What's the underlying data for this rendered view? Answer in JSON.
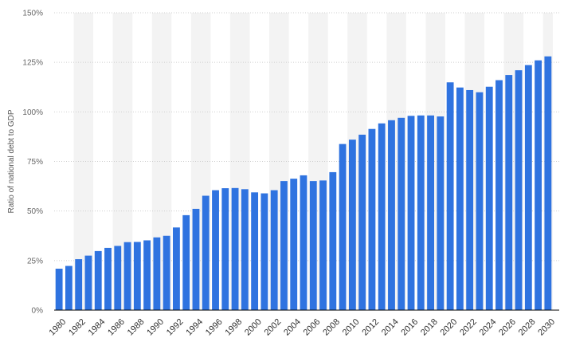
{
  "chart_data": {
    "type": "bar",
    "categories": [
      "1980",
      "1981",
      "1982",
      "1983",
      "1984",
      "1985",
      "1986",
      "1987",
      "1988",
      "1989",
      "1990",
      "1991",
      "1992",
      "1993",
      "1994",
      "1995",
      "1996",
      "1997",
      "1998",
      "1999",
      "2000",
      "2001",
      "2002",
      "2003",
      "2004",
      "2005",
      "2006",
      "2007",
      "2008",
      "2009",
      "2010",
      "2011",
      "2012",
      "2013",
      "2014",
      "2015",
      "2016",
      "2017",
      "2018",
      "2019",
      "2020",
      "2021",
      "2022",
      "2023",
      "2024",
      "2025",
      "2026",
      "2027",
      "2028",
      "2029",
      "2030"
    ],
    "values": [
      20.9,
      22.3,
      25.7,
      27.5,
      29.8,
      31.4,
      32.4,
      34.3,
      34.4,
      35.2,
      36.7,
      37.5,
      41.7,
      47.9,
      51.1,
      57.7,
      60.5,
      61.5,
      61.6,
      61.0,
      59.4,
      58.9,
      60.5,
      65.1,
      66.3,
      68.0,
      65.1,
      65.4,
      69.6,
      83.8,
      86.0,
      88.5,
      91.4,
      94.2,
      95.8,
      97.0,
      98.0,
      98.2,
      98.2,
      97.7,
      114.9,
      112.3,
      111.0,
      109.9,
      112.7,
      116.0,
      118.6,
      121.0,
      123.6,
      126.0,
      128.0
    ],
    "xlabel": "",
    "ylabel": "Ratio of national debt to GDP",
    "ylim": [
      0,
      150
    ],
    "yticks": [
      "0%",
      "25%",
      "50%",
      "75%",
      "100%",
      "125%",
      "150%"
    ],
    "ytick_values": [
      0,
      25,
      50,
      75,
      100,
      125,
      150
    ],
    "xtick_labels": [
      "1980",
      "1982",
      "1984",
      "1986",
      "1988",
      "1990",
      "1992",
      "1994",
      "1996",
      "1998",
      "2000",
      "2002",
      "2004",
      "2006",
      "2008",
      "2010",
      "2012",
      "2014",
      "2016",
      "2018",
      "2020",
      "2022",
      "2024",
      "2026",
      "2028",
      "2030"
    ],
    "grid": true,
    "legend": "none",
    "colors": {
      "bar": "#2f73e0",
      "band": "#f3f3f3",
      "grid": "#cfcfcf",
      "axis": "#000000"
    }
  }
}
